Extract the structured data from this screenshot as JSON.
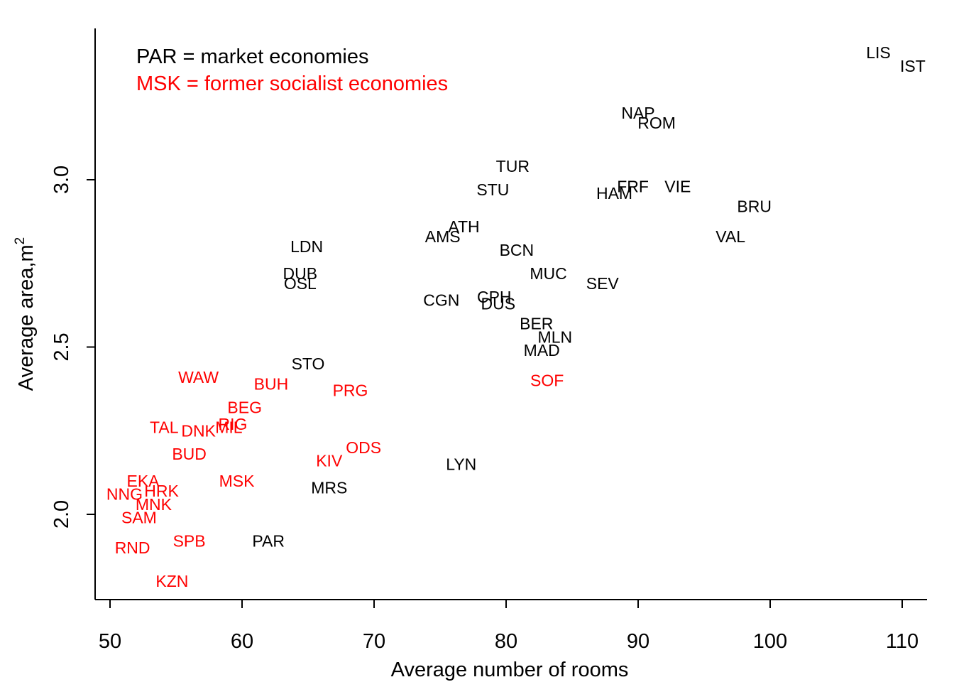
{
  "chart_data": {
    "type": "scatter",
    "xlabel": "Average number of rooms",
    "ylabel": "Average area,m",
    "ylabel_superscript": "2",
    "xlim": [
      49,
      112
    ],
    "ylim": [
      1.745,
      3.45
    ],
    "x_ticks": [
      50,
      60,
      70,
      80,
      90,
      100,
      110
    ],
    "x_tick_labels": [
      "50",
      "60",
      "70",
      "80",
      "90",
      "100",
      "110"
    ],
    "y_ticks": [
      2.0,
      2.5,
      3.0
    ],
    "y_tick_labels": [
      "2.0",
      "2.5",
      "3.0"
    ],
    "grid": false,
    "legend": [
      {
        "text": "PAR = market economies",
        "color": "#000000"
      },
      {
        "text": "MSK = former socialist economies",
        "color": "#ff0000"
      }
    ],
    "colors": {
      "market": "#000000",
      "socialist": "#ff0000"
    },
    "series": [
      {
        "group": "market",
        "points": [
          {
            "label": "LIS",
            "x": 108.2,
            "y": 3.38
          },
          {
            "label": "IST",
            "x": 110.8,
            "y": 3.34
          },
          {
            "label": "NAP",
            "x": 90.0,
            "y": 3.2
          },
          {
            "label": "ROM",
            "x": 91.4,
            "y": 3.17
          },
          {
            "label": "TUR",
            "x": 80.5,
            "y": 3.04
          },
          {
            "label": "STU",
            "x": 79.0,
            "y": 2.97
          },
          {
            "label": "HAM",
            "x": 88.2,
            "y": 2.96
          },
          {
            "label": "FRF",
            "x": 89.6,
            "y": 2.98
          },
          {
            "label": "VIE",
            "x": 93.0,
            "y": 2.98
          },
          {
            "label": "BRU",
            "x": 98.8,
            "y": 2.92
          },
          {
            "label": "ATH",
            "x": 76.8,
            "y": 2.86
          },
          {
            "label": "AMS",
            "x": 75.2,
            "y": 2.83
          },
          {
            "label": "VAL",
            "x": 97.0,
            "y": 2.83
          },
          {
            "label": "LDN",
            "x": 64.9,
            "y": 2.8
          },
          {
            "label": "BCN",
            "x": 80.8,
            "y": 2.79
          },
          {
            "label": "DUB",
            "x": 64.4,
            "y": 2.72
          },
          {
            "label": "MUC",
            "x": 83.2,
            "y": 2.72
          },
          {
            "label": "OSL",
            "x": 64.4,
            "y": 2.69
          },
          {
            "label": "SEV",
            "x": 87.3,
            "y": 2.69
          },
          {
            "label": "CPH",
            "x": 79.1,
            "y": 2.65
          },
          {
            "label": "CGN",
            "x": 75.1,
            "y": 2.64
          },
          {
            "label": "DUS",
            "x": 79.4,
            "y": 2.63
          },
          {
            "label": "BER",
            "x": 82.3,
            "y": 2.57
          },
          {
            "label": "MLN",
            "x": 83.7,
            "y": 2.53
          },
          {
            "label": "MAD",
            "x": 82.7,
            "y": 2.49
          },
          {
            "label": "STO",
            "x": 65.0,
            "y": 2.45
          },
          {
            "label": "LYN",
            "x": 76.6,
            "y": 2.15
          },
          {
            "label": "MRS",
            "x": 66.6,
            "y": 2.08
          },
          {
            "label": "PAR",
            "x": 62.0,
            "y": 1.92
          }
        ]
      },
      {
        "group": "socialist",
        "points": [
          {
            "label": "WAW",
            "x": 56.7,
            "y": 2.41
          },
          {
            "label": "BUH",
            "x": 62.2,
            "y": 2.39
          },
          {
            "label": "PRG",
            "x": 68.2,
            "y": 2.37
          },
          {
            "label": "SOF",
            "x": 83.1,
            "y": 2.4
          },
          {
            "label": "BEG",
            "x": 60.2,
            "y": 2.32
          },
          {
            "label": "TAL",
            "x": 54.1,
            "y": 2.26
          },
          {
            "label": "DNK",
            "x": 56.7,
            "y": 2.25
          },
          {
            "label": "RIG",
            "x": 59.3,
            "y": 2.27
          },
          {
            "label": "MIL",
            "x": 59.0,
            "y": 2.26
          },
          {
            "label": "BUD",
            "x": 56.0,
            "y": 2.18
          },
          {
            "label": "ODS",
            "x": 69.2,
            "y": 2.2
          },
          {
            "label": "KIV",
            "x": 66.6,
            "y": 2.16
          },
          {
            "label": "EKA",
            "x": 52.5,
            "y": 2.1
          },
          {
            "label": "MSK",
            "x": 59.6,
            "y": 2.1
          },
          {
            "label": "HRK",
            "x": 53.9,
            "y": 2.07
          },
          {
            "label": "NNG",
            "x": 51.1,
            "y": 2.06
          },
          {
            "label": "MNK",
            "x": 53.3,
            "y": 2.03
          },
          {
            "label": "SAM",
            "x": 52.2,
            "y": 1.99
          },
          {
            "label": "SPB",
            "x": 56.0,
            "y": 1.92
          },
          {
            "label": "RND",
            "x": 51.7,
            "y": 1.9
          },
          {
            "label": "KZN",
            "x": 54.7,
            "y": 1.8
          }
        ]
      }
    ]
  }
}
